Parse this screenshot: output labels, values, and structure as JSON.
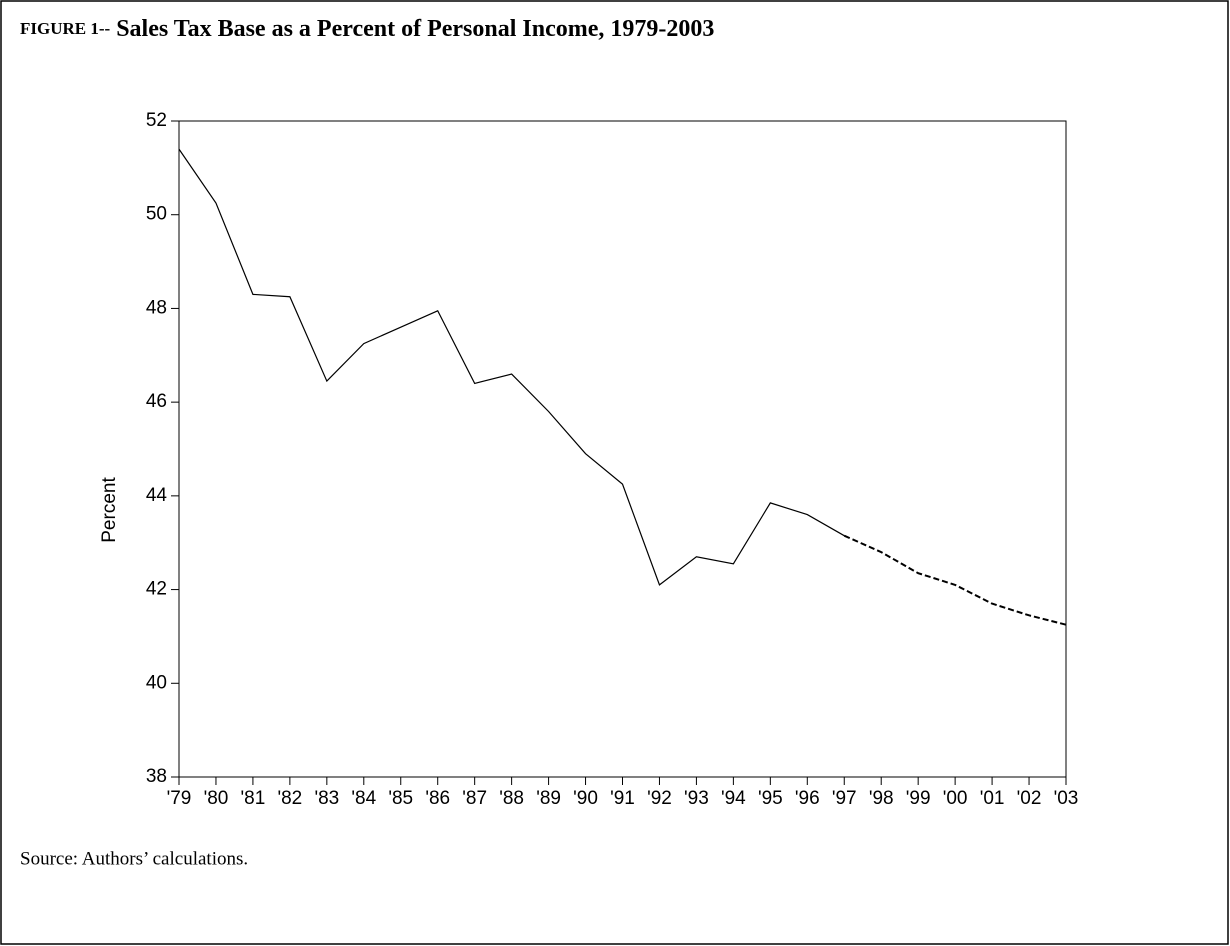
{
  "chart_data": {
    "type": "line",
    "figure_label": "FIGURE 1--",
    "title": "Sales Tax Base as a Percent of Personal Income, 1979-2003",
    "y_label": "Percent",
    "source": "Source: Authors’ calculations.",
    "categories": [
      "'79",
      "'80",
      "'81",
      "'82",
      "'83",
      "'84",
      "'85",
      "'86",
      "'87",
      "'88",
      "'89",
      "'90",
      "'91",
      "'92",
      "'93",
      "'94",
      "'95",
      "'96",
      "'97",
      "'98",
      "'99",
      "'00",
      "'01",
      "'02",
      "'03"
    ],
    "series": [
      {
        "color": "#000000",
        "dashed": false,
        "values": [
          51.4,
          50.25,
          48.3,
          48.25,
          46.45,
          47.25,
          47.6,
          47.95,
          46.4,
          46.6,
          45.8,
          44.9,
          44.25,
          42.1,
          42.7,
          42.55,
          43.85,
          43.6,
          43.15,
          null,
          null,
          null,
          null,
          null,
          null
        ]
      },
      {
        "color": "#000000",
        "dashed": true,
        "values": [
          null,
          null,
          null,
          null,
          null,
          null,
          null,
          null,
          null,
          null,
          null,
          null,
          null,
          null,
          null,
          null,
          null,
          null,
          43.15,
          42.8,
          42.35,
          42.1,
          41.7,
          41.45,
          41.25
        ]
      }
    ],
    "ylim": [
      38,
      52
    ],
    "yticks": [
      38,
      40,
      42,
      44,
      46,
      48,
      50,
      52
    ]
  }
}
